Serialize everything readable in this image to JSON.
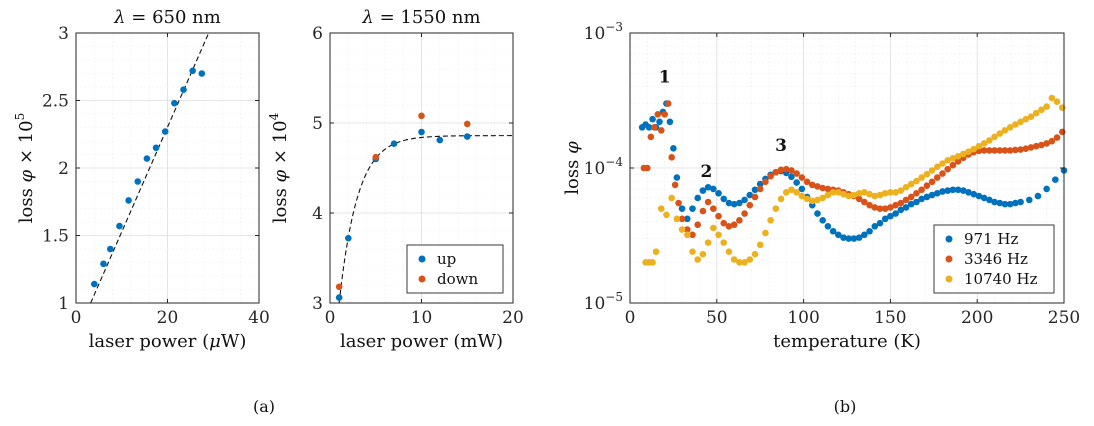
{
  "captions": {
    "a": "(a)",
    "b": "(b)"
  },
  "chart_data": [
    {
      "id": "a1",
      "type": "scatter",
      "title": "λ = 650 nm",
      "title_parts": {
        "lambda": "λ",
        "rest": " = 650 nm"
      },
      "xlabel": "laser power (μW)",
      "xlabel_parts": {
        "pre": "laser power (",
        "mu": "μ",
        "post": "W)"
      },
      "ylabel": "loss φ × 10⁵",
      "ylabel_parts": {
        "pre": "loss ",
        "phi": "φ",
        "mid": " × 10",
        "sup": "5"
      },
      "xlim": [
        0,
        40
      ],
      "ylim": [
        1,
        3
      ],
      "xticks": [
        0,
        20,
        40
      ],
      "xtick_labels": [
        "0",
        "20",
        "40"
      ],
      "yticks": [
        1,
        1.5,
        2,
        2.5,
        3
      ],
      "ytick_labels": [
        "1",
        "1.5",
        "2",
        "2.5",
        "3"
      ],
      "grid": true,
      "colors": {
        "up": "#0072BD"
      },
      "series": [
        {
          "color_key": "up",
          "x": [
            4,
            6,
            7.5,
            9.5,
            11.5,
            13.5,
            15.5,
            17.5,
            19.5,
            21.5,
            23.5,
            25.5,
            27.5
          ],
          "y": [
            1.14,
            1.29,
            1.4,
            1.57,
            1.76,
            1.9,
            2.07,
            2.15,
            2.27,
            2.48,
            2.58,
            2.72,
            2.7
          ]
        }
      ],
      "fit": {
        "kind": "linear",
        "points": [
          [
            3.2,
            1.0
          ],
          [
            29,
            3.0
          ]
        ]
      }
    },
    {
      "id": "a2",
      "type": "scatter",
      "title": "λ = 1550 nm",
      "title_parts": {
        "lambda": "λ",
        "rest": " = 1550 nm"
      },
      "xlabel": "laser power (mW)",
      "ylabel": "loss φ × 10⁴",
      "ylabel_parts": {
        "pre": "loss ",
        "phi": "φ",
        "mid": " × 10",
        "sup": "4"
      },
      "xlim": [
        0,
        20
      ],
      "ylim": [
        3,
        6
      ],
      "xticks": [
        0,
        10,
        20
      ],
      "xtick_labels": [
        "0",
        "10",
        "20"
      ],
      "yticks": [
        3,
        4,
        5,
        6
      ],
      "ytick_labels": [
        "3",
        "4",
        "5",
        "6"
      ],
      "grid": true,
      "legend_position": "bottom-right",
      "colors": {
        "up": "#0072BD",
        "down": "#D95319"
      },
      "series": [
        {
          "name": "up",
          "color_key": "up",
          "x": [
            1,
            2,
            5,
            7,
            10,
            12,
            15
          ],
          "y": [
            3.06,
            3.72,
            4.6,
            4.77,
            4.9,
            4.81,
            4.85
          ]
        },
        {
          "name": "down",
          "color_key": "down",
          "x": [
            1,
            5,
            10,
            15
          ],
          "y": [
            3.18,
            4.62,
            5.08,
            4.99
          ]
        }
      ],
      "fit": {
        "kind": "saturation",
        "y0": 3.0,
        "ymax": 4.86,
        "tau": 2.0,
        "x_from": 1.0,
        "x_to": 20
      }
    },
    {
      "id": "b",
      "type": "scatter",
      "xlabel": "temperature (K)",
      "ylabel": "loss φ",
      "ylabel_parts": {
        "pre": "loss ",
        "phi": "φ"
      },
      "xlim": [
        0,
        250
      ],
      "ylim": [
        1e-05,
        0.001
      ],
      "yscale": "log",
      "xticks": [
        0,
        50,
        100,
        150,
        200,
        250
      ],
      "xtick_labels": [
        "0",
        "50",
        "100",
        "150",
        "200",
        "250"
      ],
      "yticks": [
        1e-05,
        0.0001,
        0.001
      ],
      "ytick_labels": [
        {
          "base": "10",
          "exp": "−5"
        },
        {
          "base": "10",
          "exp": "−4"
        },
        {
          "base": "10",
          "exp": "−3"
        }
      ],
      "grid": true,
      "legend_position": "bottom-right",
      "annotations": [
        {
          "text": "1",
          "x": 20,
          "y": 0.00043
        },
        {
          "text": "2",
          "x": 44,
          "y": 8.6e-05
        },
        {
          "text": "3",
          "x": 87,
          "y": 0.000134
        }
      ],
      "colors": {
        "971": "#0072BD",
        "3346": "#D95319",
        "10740": "#EDB120"
      },
      "series": [
        {
          "name": "971 Hz",
          "color_key": "971",
          "x": [
            7,
            9,
            11,
            13,
            15,
            17,
            19,
            21,
            23,
            25,
            27,
            30,
            33,
            36,
            39,
            42,
            45,
            48,
            51,
            54,
            57,
            60,
            63,
            66,
            69,
            72,
            75,
            78,
            81,
            84,
            87,
            90,
            93,
            96,
            99,
            102,
            105,
            108,
            111,
            114,
            117,
            120,
            123,
            126,
            129,
            132,
            135,
            138,
            141,
            144,
            147,
            150,
            153,
            156,
            159,
            162,
            165,
            168,
            171,
            174,
            177,
            180,
            183,
            186,
            189,
            192,
            195,
            198,
            201,
            204,
            207,
            210,
            213,
            216,
            219,
            222,
            225,
            230,
            235,
            240,
            245,
            250
          ],
          "y": [
            0.0002,
            0.00021,
            0.0002,
            0.00023,
            0.0002,
            0.00022,
            0.00026,
            0.0003,
            0.00022,
            0.00014,
            8.5e-05,
            5e-05,
            4.2e-05,
            5e-05,
            6e-05,
            6.8e-05,
            7.2e-05,
            7e-05,
            6.5e-05,
            5.9e-05,
            5.5e-05,
            5.4e-05,
            5.5e-05,
            5.8e-05,
            6.3e-05,
            6.9e-05,
            7.6e-05,
            8.3e-05,
            8.9e-05,
            9.3e-05,
            9.5e-05,
            9.2e-05,
            8.6e-05,
            7.8e-05,
            7e-05,
            6.1e-05,
            5.3e-05,
            4.6e-05,
            4.1e-05,
            3.7e-05,
            3.4e-05,
            3.2e-05,
            3.05e-05,
            3e-05,
            3e-05,
            3.05e-05,
            3.2e-05,
            3.4e-05,
            3.7e-05,
            3.9e-05,
            4.2e-05,
            4.4e-05,
            4.6e-05,
            4.9e-05,
            5.1e-05,
            5.4e-05,
            5.6e-05,
            5.9e-05,
            6.1e-05,
            6.3e-05,
            6.5e-05,
            6.7e-05,
            6.8e-05,
            6.9e-05,
            6.9e-05,
            6.8e-05,
            6.6e-05,
            6.4e-05,
            6.2e-05,
            6e-05,
            5.8e-05,
            5.6e-05,
            5.5e-05,
            5.4e-05,
            5.4e-05,
            5.5e-05,
            5.6e-05,
            5.8e-05,
            6.2e-05,
            7e-05,
            8.2e-05,
            9.6e-05
          ]
        },
        {
          "name": "3346 Hz",
          "color_key": "3346",
          "x": [
            8,
            10,
            12,
            14,
            16,
            18,
            20,
            22,
            24,
            26,
            28,
            30,
            33,
            36,
            39,
            42,
            45,
            48,
            51,
            54,
            57,
            60,
            63,
            66,
            69,
            72,
            75,
            78,
            81,
            84,
            87,
            90,
            93,
            96,
            99,
            102,
            105,
            108,
            111,
            114,
            117,
            120,
            123,
            126,
            129,
            132,
            135,
            138,
            141,
            144,
            147,
            150,
            153,
            156,
            159,
            162,
            165,
            168,
            171,
            174,
            177,
            180,
            183,
            186,
            189,
            192,
            195,
            198,
            201,
            204,
            207,
            210,
            213,
            216,
            219,
            222,
            225,
            228,
            231,
            234,
            237,
            240,
            243,
            246,
            249
          ],
          "y": [
            0.0001,
            0.0001,
            0.00017,
            0.0002,
            0.00025,
            0.00019,
            0.00025,
            0.0003,
            0.00012,
            7.5e-05,
            5.5e-05,
            4.2e-05,
            3.5e-05,
            3.2e-05,
            3.8e-05,
            4.8e-05,
            5.6e-05,
            5e-05,
            4.4e-05,
            3.9e-05,
            3.7e-05,
            3.8e-05,
            4.1e-05,
            4.6e-05,
            5.3e-05,
            6.1e-05,
            7e-05,
            7.9e-05,
            8.7e-05,
            9.3e-05,
            9.7e-05,
            9.8e-05,
            9.6e-05,
            9.1e-05,
            8.5e-05,
            7.9e-05,
            7.5e-05,
            7.3e-05,
            7.1e-05,
            7e-05,
            6.9e-05,
            6.8e-05,
            6.6e-05,
            6.4e-05,
            6.2e-05,
            5.9e-05,
            5.6e-05,
            5.3e-05,
            5.1e-05,
            5e-05,
            5e-05,
            5.1e-05,
            5.3e-05,
            5.5e-05,
            5.8e-05,
            6.1e-05,
            6.5e-05,
            6.9e-05,
            7.4e-05,
            7.9e-05,
            8.5e-05,
            9.1e-05,
            9.8e-05,
            0.000105,
            0.000112,
            0.000119,
            0.000126,
            0.000131,
            0.000134,
            0.000135,
            0.000135,
            0.000135,
            0.000135,
            0.000135,
            0.000135,
            0.000136,
            0.000137,
            0.000139,
            0.000142,
            0.000145,
            0.000148,
            0.000152,
            0.000158,
            0.000168,
            0.000185
          ]
        },
        {
          "name": "10740 Hz",
          "color_key": "10740",
          "x": [
            9,
            11,
            13,
            15,
            18,
            21,
            24,
            27,
            30,
            33,
            36,
            39,
            42,
            45,
            48,
            51,
            54,
            57,
            60,
            63,
            66,
            69,
            72,
            75,
            78,
            81,
            84,
            87,
            90,
            93,
            96,
            99,
            102,
            105,
            108,
            111,
            114,
            117,
            120,
            123,
            126,
            129,
            132,
            135,
            138,
            141,
            144,
            147,
            150,
            153,
            156,
            159,
            162,
            165,
            168,
            171,
            174,
            177,
            180,
            183,
            186,
            189,
            192,
            195,
            198,
            201,
            204,
            207,
            210,
            213,
            216,
            219,
            222,
            225,
            228,
            231,
            234,
            237,
            240,
            243,
            246,
            249
          ],
          "y": [
            2e-05,
            2e-05,
            2e-05,
            2.4e-05,
            5e-05,
            4.5e-05,
            6e-05,
            4.2e-05,
            3.5e-05,
            3.2e-05,
            2.4e-05,
            2.1e-05,
            2.3e-05,
            2.8e-05,
            3.6e-05,
            3.2e-05,
            2.8e-05,
            2.4e-05,
            2.1e-05,
            2e-05,
            2e-05,
            2.1e-05,
            2.3e-05,
            2.7e-05,
            3.3e-05,
            4.1e-05,
            5e-05,
            5.9e-05,
            6.6e-05,
            6.9e-05,
            6.6e-05,
            6.2e-05,
            5.9e-05,
            5.7e-05,
            5.8e-05,
            6e-05,
            6.3e-05,
            6.6e-05,
            6.6e-05,
            6.4e-05,
            6.2e-05,
            6.3e-05,
            6.5e-05,
            6.6e-05,
            6.4e-05,
            6.2e-05,
            6.3e-05,
            6.5e-05,
            6.6e-05,
            6.6e-05,
            6.8e-05,
            7.2e-05,
            7.6e-05,
            8e-05,
            8.5e-05,
            9e-05,
            9.6e-05,
            0.000102,
            0.000108,
            0.000114,
            0.000118,
            0.000122,
            0.000127,
            0.000132,
            0.000138,
            0.000145,
            0.000152,
            0.00016,
            0.00017,
            0.00018,
            0.00019,
            0.0002,
            0.00021,
            0.00022,
            0.00023,
            0.00024,
            0.000255,
            0.00027,
            0.000285,
            0.00033,
            0.00031,
            0.00028
          ]
        }
      ]
    }
  ]
}
